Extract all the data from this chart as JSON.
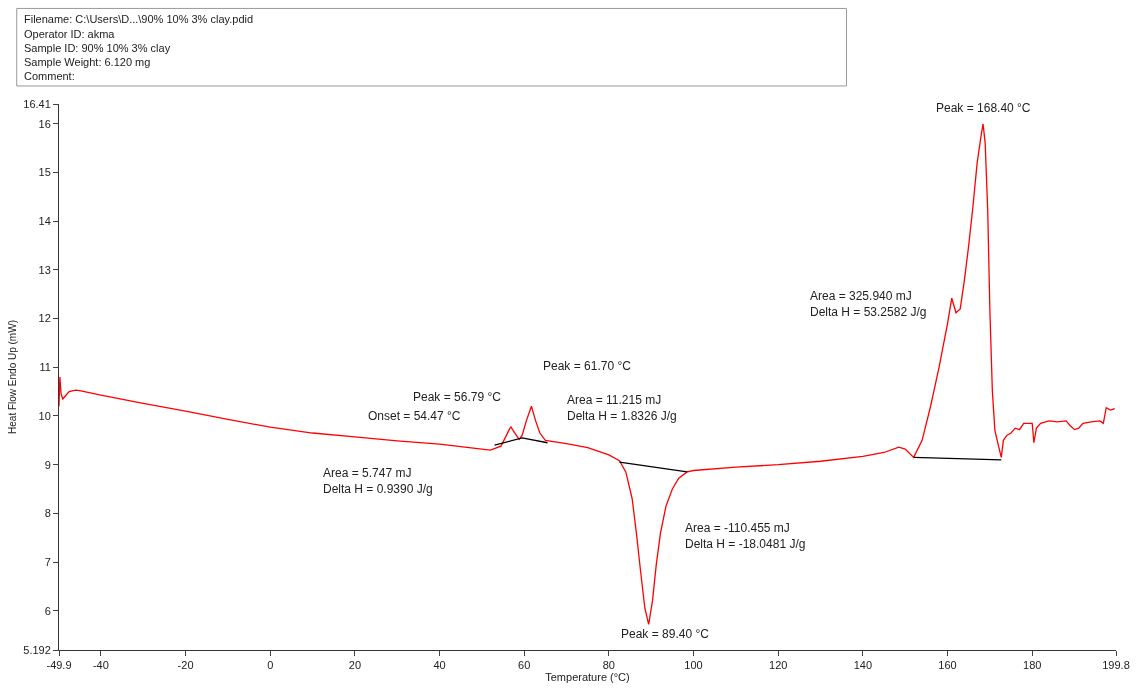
{
  "chart_data": {
    "type": "line",
    "xlabel": "Temperature (°C)",
    "ylabel": "Heat Flow Endo Up (mW)",
    "xlim": [
      -49.9,
      199.8
    ],
    "xticks": [
      -49.9,
      -40,
      -20,
      0,
      20,
      40,
      60,
      80,
      100,
      120,
      140,
      160,
      180,
      199.8
    ],
    "ylim": [
      5.192,
      16.41
    ],
    "yticks": [
      5.192,
      6,
      7,
      8,
      9,
      10,
      11,
      12,
      13,
      14,
      15,
      16,
      16.41
    ],
    "series": [
      {
        "color": "#ff0000",
        "x": [
          -49.9,
          -49.7,
          -49.4,
          -49.0,
          -48.5,
          -47.5,
          -46,
          -45,
          -40,
          -30,
          -20,
          -10,
          0,
          10,
          20,
          30,
          40,
          48,
          52,
          54.5,
          55.5,
          56.8,
          57.8,
          58.8,
          59.5,
          60.5,
          61.7,
          62.7,
          63.7,
          65,
          70,
          75,
          80,
          82.5,
          84,
          85.5,
          86.5,
          87.5,
          88.5,
          89.4,
          90.3,
          91.2,
          92.2,
          93.5,
          95,
          96.5,
          98.5,
          100,
          110,
          120,
          130,
          140,
          145,
          148.5,
          150,
          152,
          154,
          156,
          158,
          160,
          161,
          162,
          163,
          164,
          165,
          166,
          167,
          168,
          168.4,
          168.9,
          169.5,
          170,
          170.6,
          171.2,
          172,
          172.7,
          173.2,
          174,
          175,
          176,
          177,
          178,
          179,
          180,
          180.4,
          181,
          182,
          184,
          186,
          188,
          189,
          190,
          191,
          192,
          194,
          196,
          196.8,
          197.5,
          198.5,
          199.5
        ],
        "values": [
          10.2,
          10.8,
          10.45,
          10.35,
          10.4,
          10.5,
          10.53,
          10.52,
          10.43,
          10.26,
          10.1,
          9.93,
          9.77,
          9.65,
          9.57,
          9.49,
          9.42,
          9.34,
          9.3,
          9.38,
          9.55,
          9.78,
          9.65,
          9.52,
          9.6,
          9.9,
          10.2,
          9.9,
          9.65,
          9.5,
          9.43,
          9.35,
          9.2,
          9.08,
          8.85,
          8.3,
          7.6,
          6.8,
          6.05,
          5.72,
          6.2,
          6.95,
          7.6,
          8.15,
          8.5,
          8.72,
          8.85,
          8.88,
          8.95,
          9.0,
          9.07,
          9.17,
          9.25,
          9.36,
          9.32,
          9.15,
          9.5,
          10.2,
          11.0,
          11.9,
          12.42,
          12.12,
          12.2,
          12.8,
          13.5,
          14.3,
          15.2,
          15.8,
          16.0,
          15.6,
          14.2,
          12.2,
          10.5,
          9.7,
          9.4,
          9.15,
          9.5,
          9.6,
          9.65,
          9.75,
          9.72,
          9.85,
          9.85,
          9.85,
          9.45,
          9.75,
          9.85,
          9.9,
          9.88,
          9.9,
          9.8,
          9.72,
          9.75,
          9.85,
          9.88,
          9.9,
          9.85,
          10.17,
          10.12,
          10.15
        ]
      },
      {
        "color": "#000000",
        "x": [
          53,
          59.5,
          65.5
        ],
        "values": [
          9.4,
          9.55,
          9.45
        ]
      },
      {
        "color": "#000000",
        "x": [
          82.5,
          98.5
        ],
        "values": [
          9.05,
          8.85
        ]
      },
      {
        "color": "#000000",
        "x": [
          152,
          172.7
        ],
        "values": [
          9.15,
          9.1
        ]
      }
    ],
    "annotations": [
      "Filename: C:\\Users\\D...\\90% 10% 3% clay.pdid",
      "Operator ID: akma",
      "Sample ID: 90% 10% 3% clay",
      "Sample Weight: 6.120 mg",
      "Comment:",
      {
        "text": "Peak = 168.40 °C",
        "x": 168.4,
        "y": 16.0
      },
      {
        "text": "Area = 325.940 mJ\nDelta H = 53.2582 J/g",
        "x": 160,
        "y": 12.1
      },
      {
        "text": "Peak = 61.70 °C",
        "x": 61.7,
        "y": 10.2
      },
      {
        "text": "Peak = 56.79 °C",
        "x": 56.79,
        "y": 9.78
      },
      "Onset = 54.47 °C",
      {
        "text": "Area = 11.215 mJ\nDelta H = 1.8326 J/g",
        "x": 63.7,
        "y": 9.65
      },
      "Area = 5.747 mJ\nDelta H = 0.9390 J/g",
      {
        "text": "Peak = 89.40 °C",
        "x": 89.4,
        "y": 5.72
      },
      "Area = -110.455 mJ\nDelta H = -18.0481 J/g"
    ]
  }
}
